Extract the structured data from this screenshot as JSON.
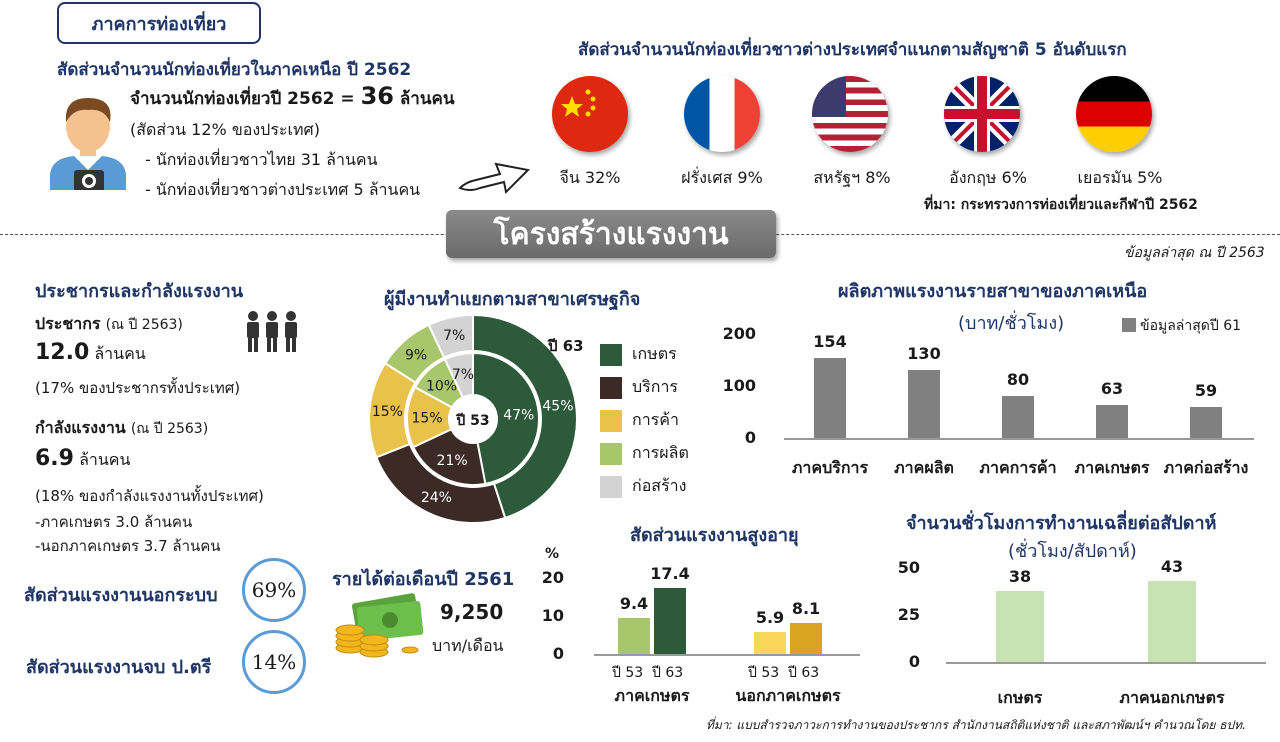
{
  "tourism": {
    "badge": "ภาคการท่องเที่ยว",
    "title": "สัดส่วนจำนวนนักท่องเที่ยวในภาคเหนือ ปี 2562",
    "total_label": "จำนวนนักท่องเที่ยวปี 2562 =",
    "total_value": "36",
    "total_unit": "ล้านคน",
    "share": "(สัดส่วน 12% ของประเทศ)",
    "thai": "- นักท่องเที่ยวชาวไทย  31 ล้านคน",
    "foreign": "- นักท่องเที่ยวชาวต่างประเทศ 5 ล้านคน",
    "nation_title": "สัดส่วนจำนวนนักท่องเที่ยวชาวต่างประเทศจำแนกตามสัญชาติ 5 อันดับแรก",
    "nations": [
      {
        "label": "จีน 32%",
        "icon": "china-flag-icon"
      },
      {
        "label": "ฝรั่งเศส 9%",
        "icon": "france-flag-icon"
      },
      {
        "label": "สหรัฐฯ 8%",
        "icon": "usa-flag-icon"
      },
      {
        "label": "อังกฤษ 6%",
        "icon": "uk-flag-icon"
      },
      {
        "label": "เยอรมัน 5%",
        "icon": "germany-flag-icon"
      }
    ],
    "source": "ที่มา: กระทรวงการท่องเที่ยวและกีฬาปี 2562"
  },
  "labor": {
    "banner": "โครงสร้างแรงงาน",
    "latest": "ข้อมูลล่าสุด ณ ปี 2563",
    "pop_title": "ประชากรและกำลังแรงงาน",
    "pop_label": "ประชากร",
    "pop_year": "(ณ ปี 2563)",
    "pop_value": "12.0",
    "pop_unit": "ล้านคน",
    "pop_share": "(17% ของประชากรทั้งประเทศ)",
    "lf_label": "กำลังแรงงาน",
    "lf_year": "(ณ ปี 2563)",
    "lf_value": "6.9",
    "lf_unit": "ล้านคน",
    "lf_share": "(18% ของกำลังแรงงานทั้งประเทศ)",
    "lf_agri": "-ภาคเกษตร  3.0 ล้านคน",
    "lf_nonagri": "-นอกภาคเกษตร 3.7 ล้านคน",
    "informal_label": "สัดส่วนแรงงานนอกระบบ",
    "informal_value": "69%",
    "degree_label": "สัดส่วนแรงงานจบ ป.ตรี",
    "degree_value": "14%",
    "income_title": "รายได้ต่อเดือนปี 2561",
    "income_value": "9,250",
    "income_unit": "บาท/เดือน",
    "footer_source": "ที่มา: แบบสำรวจภาวะการทำงานของประชากร สำนักงานสถิติแห่งชาติ และสภาพัฒน์ฯ คำนวณโดย ธปท."
  },
  "colors": {
    "navy": "#1f3566",
    "agri": "#2d5a3a",
    "service": "#3b2a26",
    "trade": "#e8c24a",
    "manuf": "#a8c66c",
    "constr": "#d3d3d3"
  },
  "chart_data": [
    {
      "type": "pie",
      "title": "ผู้มีงานทำแยกตามสาขาเศรษฐกิจ",
      "outer_label": "ปี 63",
      "inner_label": "ปี 53",
      "categories": [
        "เกษตร",
        "บริการ",
        "การค้า",
        "การผลิต",
        "ก่อสร้าง"
      ],
      "series": [
        {
          "name": "ปี 63",
          "values": [
            45,
            24,
            15,
            9,
            7
          ]
        },
        {
          "name": "ปี 53",
          "values": [
            47,
            21,
            15,
            10,
            7
          ]
        }
      ]
    },
    {
      "type": "bar",
      "title": "ผลิตภาพแรงงานรายสาขาของภาคเหนือ",
      "subtitle": "(บาท/ชั่วโมง)",
      "legend": "ข้อมูลล่าสุดปี 61",
      "categories": [
        "ภาคบริการ",
        "ภาคผลิต",
        "ภาคการค้า",
        "ภาคเกษตร",
        "ภาคก่อสร้าง"
      ],
      "values": [
        154,
        130,
        80,
        63,
        59
      ],
      "yticks": [
        "200",
        "100",
        "0"
      ],
      "ylim": [
        0,
        200
      ]
    },
    {
      "type": "bar",
      "title": "สัดส่วนแรงงานสูงอายุ",
      "ylabel": "%",
      "yticks": [
        "20",
        "10",
        "0"
      ],
      "ylim": [
        0,
        20
      ],
      "groups": [
        {
          "name": "ภาคเกษตร",
          "x": [
            "ปี 53",
            "ปี 63"
          ],
          "values": [
            9.4,
            17.4
          ],
          "labels": [
            "9.4",
            "17.4"
          ]
        },
        {
          "name": "นอกภาคเกษตร",
          "x": [
            "ปี 53",
            "ปี 63"
          ],
          "values": [
            5.9,
            8.1
          ],
          "labels": [
            "5.9",
            "8.1"
          ]
        }
      ]
    },
    {
      "type": "bar",
      "title": "จำนวนชั่วโมงการทำงานเฉลี่ยต่อสัปดาห์",
      "subtitle": "(ชั่วโมง/สัปดาห์)",
      "categories": [
        "เกษตร",
        "ภาคนอกเกษตร"
      ],
      "values": [
        38,
        43
      ],
      "yticks": [
        "50",
        "25",
        "0"
      ],
      "ylim": [
        0,
        50
      ]
    }
  ]
}
